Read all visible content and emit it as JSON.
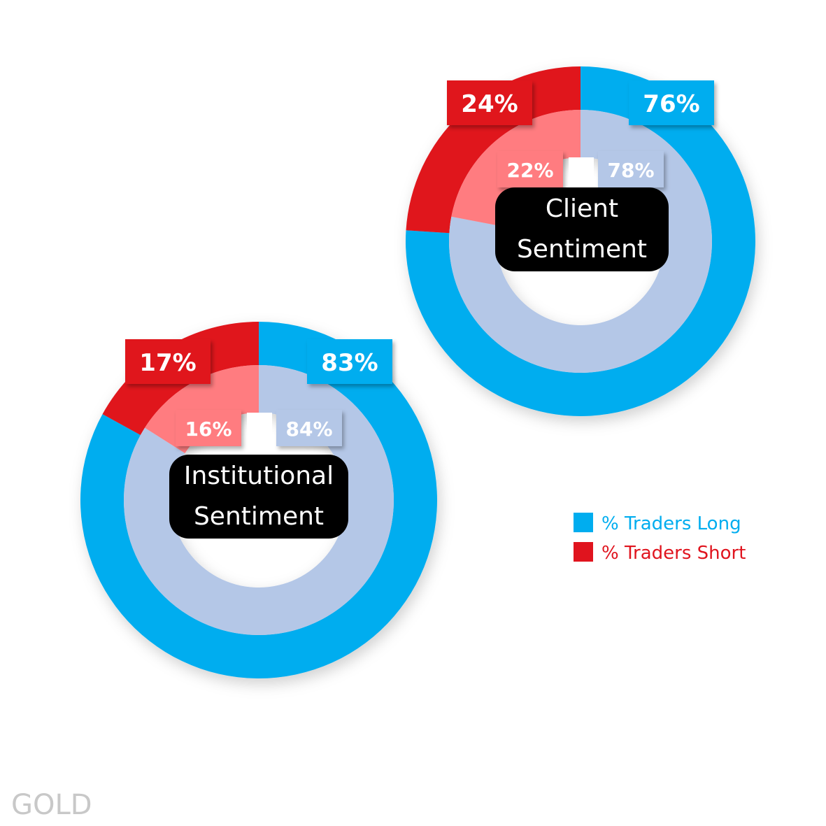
{
  "chart_data": [
    {
      "type": "donut",
      "title": "Client Sentiment",
      "series": [
        {
          "color": "#00adef",
          "inner_color": "#b4c7e7",
          "values": [
            76,
            78
          ],
          "value_labels": [
            "76%",
            "78%"
          ]
        },
        {
          "color": "#e0141e",
          "inner_color": "#ff7c80",
          "values": [
            24,
            22
          ],
          "value_labels": [
            "24%",
            "22%"
          ]
        }
      ]
    },
    {
      "type": "donut",
      "title": "Institutional Sentiment",
      "series": [
        {
          "color": "#00adef",
          "inner_color": "#b4c7e7",
          "values": [
            83,
            84
          ],
          "value_labels": [
            "83%",
            "84%"
          ]
        },
        {
          "color": "#e0141e",
          "inner_color": "#ff7c80",
          "values": [
            17,
            16
          ],
          "value_labels": [
            "17%",
            "16%"
          ]
        }
      ]
    }
  ],
  "legend": {
    "position": "right",
    "items": [
      {
        "name": "% Traders Long",
        "color": "#00adef"
      },
      {
        "name": "% Traders Short",
        "color": "#e0141e"
      }
    ]
  },
  "watermark": "GOLD"
}
